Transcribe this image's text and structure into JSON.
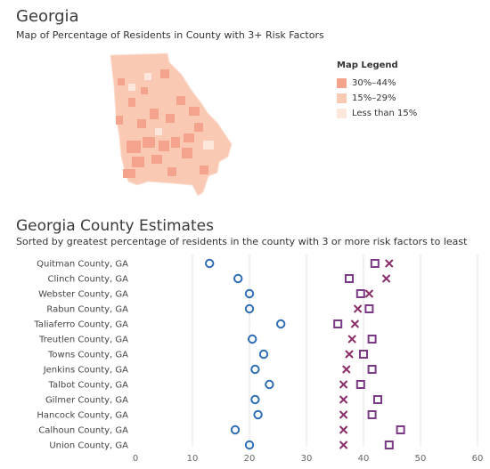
{
  "map": {
    "title": "Georgia",
    "subtitle": "Map of Percentage of Residents in County with 3+ Risk Factors",
    "legend": {
      "title": "Map Legend",
      "items": [
        {
          "label": "30%–44%",
          "color": "#f4a48c"
        },
        {
          "label": "15%–29%",
          "color": "#f9c9b4"
        },
        {
          "label": "Less than 15%",
          "color": "#fde7dc"
        }
      ]
    }
  },
  "estimates": {
    "title": "Georgia County Estimates",
    "subtitle": "Sorted by greatest percentage of residents in the county with 3 or more risk factors to least"
  },
  "chart_data": {
    "type": "scatter",
    "categories": [
      "Quitman County, GA",
      "Clinch County, GA",
      "Webster County, GA",
      "Rabun County, GA",
      "Taliaferro County, GA",
      "Treutlen County, GA",
      "Towns County, GA",
      "Jenkins County, GA",
      "Talbot County, GA",
      "Gilmer County, GA",
      "Hancock County, GA",
      "Calhoun County, GA",
      "Union County, GA"
    ],
    "series": [
      {
        "marker": "circle",
        "color": "#2f6db5",
        "values": [
          13,
          18,
          20,
          20,
          25.5,
          20.5,
          22.5,
          21,
          23.5,
          21,
          21.5,
          17.5,
          20
        ]
      },
      {
        "marker": "x",
        "color": "#8b2e6a",
        "values": [
          44.5,
          44,
          41,
          39,
          38.5,
          38,
          37.5,
          37,
          36.5,
          36.5,
          36.5,
          36.5,
          36.5
        ]
      },
      {
        "marker": "square",
        "color": "#7a3a86",
        "values": [
          42,
          37.5,
          39.5,
          41,
          35.5,
          41.5,
          40,
          41.5,
          39.5,
          42.5,
          41.5,
          46.5,
          44.5
        ]
      }
    ],
    "xlim": [
      0,
      60
    ],
    "xticks": [
      "0",
      "10",
      "20",
      "30",
      "40",
      "50",
      "60"
    ],
    "grid": true
  }
}
